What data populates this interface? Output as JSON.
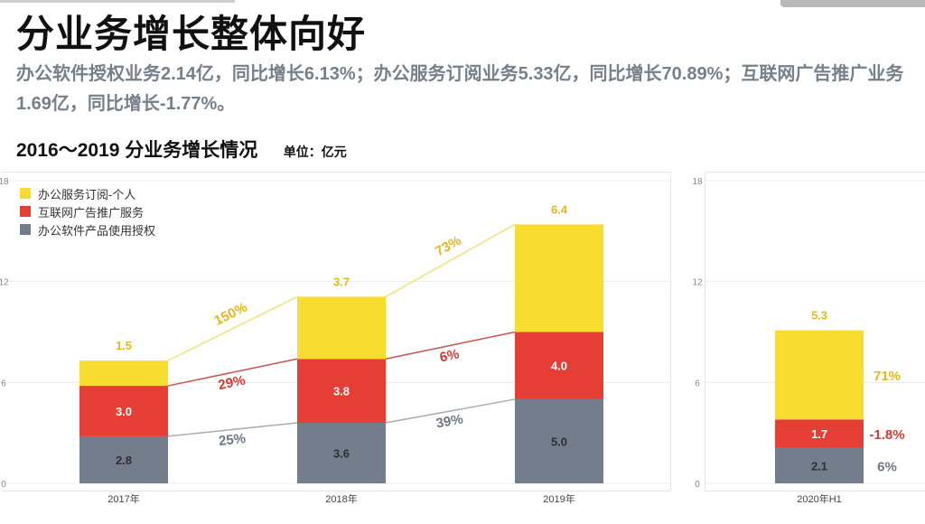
{
  "page": {
    "title": "分业务增长整体向好",
    "subtitle": "办公软件授权业务2.14亿，同比增长6.13%；办公服务订阅业务5.33亿，同比增长70.89%；互联网广告推广业务1.69亿，同比增长-1.77%。",
    "chart_title": "2016～2019 分业务增长情况",
    "unit": "单位：亿元"
  },
  "colors": {
    "subscription": "#f8dc2f",
    "ads": "#e53e34",
    "license": "#737d8c",
    "line_subscription": "#f2e37a",
    "line_ads": "#c9534e",
    "line_license": "#a7aeb8",
    "pct_subscription": "#e3b81b",
    "pct_ads": "#d23b33",
    "pct_license": "#6e7785",
    "grid": "#ececec",
    "axis_text": "#888888"
  },
  "legend": [
    {
      "label": "办公服务订阅-个人",
      "color_key": "subscription"
    },
    {
      "label": "互联网广告推广服务",
      "color_key": "ads"
    },
    {
      "label": "办公软件产品使用授权",
      "color_key": "license"
    }
  ],
  "chart_data": [
    {
      "type": "bar",
      "stacked": true,
      "categories": [
        "2017年",
        "2018年",
        "2019年"
      ],
      "series": [
        {
          "name": "办公软件产品使用授权",
          "key": "license",
          "values": [
            2.8,
            3.6,
            5.0
          ],
          "labels": [
            "2.8",
            "3.6",
            "5.0"
          ]
        },
        {
          "name": "互联网广告推广服务",
          "key": "ads",
          "values": [
            3.0,
            3.8,
            4.0
          ],
          "labels": [
            "3.0",
            "3.8",
            "4.0"
          ]
        },
        {
          "name": "办公服务订阅-个人",
          "key": "subscription",
          "values": [
            1.5,
            3.7,
            6.4
          ],
          "labels": [
            "1.5",
            "3.7",
            "6.4"
          ]
        }
      ],
      "growth": {
        "subscription": [
          "150%",
          "73%"
        ],
        "ads": [
          "29%",
          "6%"
        ],
        "license": [
          "25%",
          "39%"
        ]
      },
      "ylim": [
        0,
        18
      ],
      "yticks": [
        "0",
        "6",
        "12",
        "18"
      ],
      "grid": true
    },
    {
      "type": "bar",
      "stacked": true,
      "categories": [
        "2020年H1"
      ],
      "series": [
        {
          "name": "办公软件产品使用授权",
          "key": "license",
          "values": [
            2.1
          ],
          "labels": [
            "2.1"
          ],
          "growth": "6%"
        },
        {
          "name": "互联网广告推广服务",
          "key": "ads",
          "values": [
            1.7
          ],
          "labels": [
            "1.7"
          ],
          "growth": "-1.8%"
        },
        {
          "name": "办公服务订阅-个人",
          "key": "subscription",
          "values": [
            5.3
          ],
          "labels": [
            "5.3"
          ],
          "growth": "71%"
        }
      ],
      "ylim": [
        0,
        18
      ],
      "yticks": [
        "0",
        "6",
        "12",
        "18"
      ],
      "grid": true
    }
  ]
}
